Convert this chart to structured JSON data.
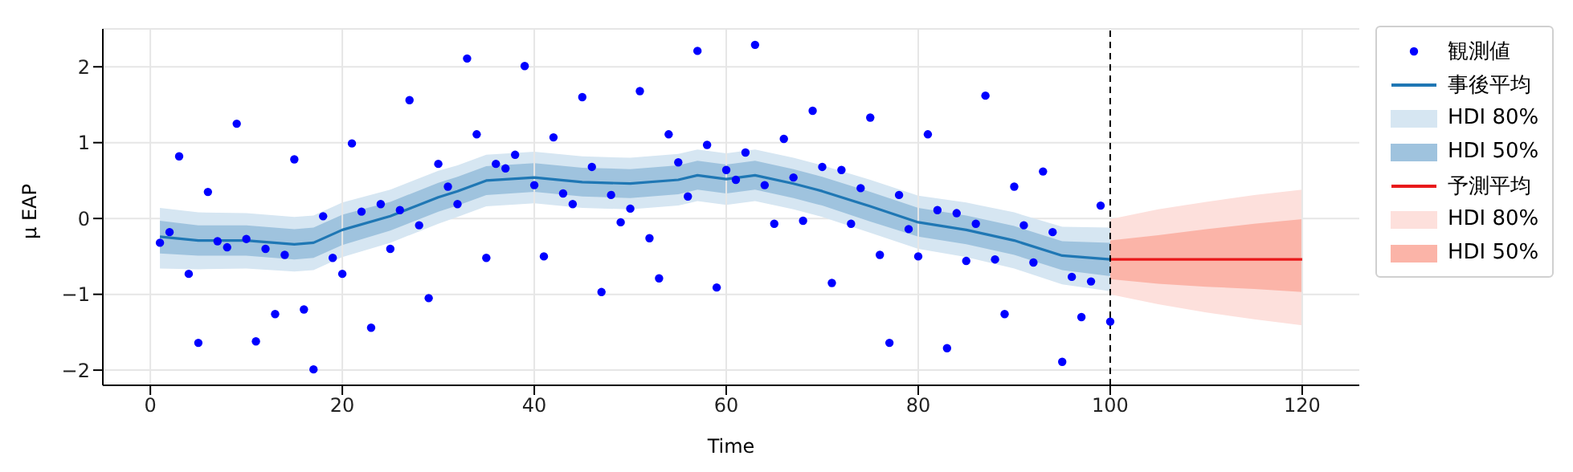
{
  "chart_data": {
    "type": "line",
    "xlabel": "Time",
    "ylabel": "μ EAP",
    "xlim": [
      -4.95,
      125.95
    ],
    "ylim": [
      -2.2,
      2.5
    ],
    "xticks": [
      0,
      20,
      40,
      60,
      80,
      100,
      120
    ],
    "yticks": [
      -2,
      -1,
      0,
      1,
      2
    ],
    "grid": true,
    "legend": "right",
    "ref_lines": [
      {
        "axis": "x",
        "value": 100,
        "color": "#000000",
        "line_style": "dashed"
      }
    ],
    "series": [
      {
        "type": "scatter",
        "name": "観測値",
        "color": "#0000ff",
        "marker": "circle",
        "x": [
          1,
          2,
          3,
          4,
          5,
          6,
          7,
          8,
          9,
          10,
          11,
          12,
          13,
          14,
          15,
          16,
          17,
          18,
          19,
          20,
          21,
          22,
          23,
          24,
          25,
          26,
          27,
          28,
          29,
          30,
          31,
          32,
          33,
          34,
          35,
          36,
          37,
          38,
          39,
          40,
          41,
          42,
          43,
          44,
          45,
          46,
          47,
          48,
          49,
          50,
          51,
          52,
          53,
          54,
          55,
          56,
          57,
          58,
          59,
          60,
          61,
          62,
          63,
          64,
          65,
          66,
          67,
          68,
          69,
          70,
          71,
          72,
          73,
          74,
          75,
          76,
          77,
          78,
          79,
          80,
          81,
          82,
          83,
          84,
          85,
          86,
          87,
          88,
          89,
          90,
          91,
          92,
          93,
          94,
          95,
          96,
          97,
          98,
          99,
          100
        ],
        "values": [
          -0.32,
          -0.18,
          0.82,
          -0.73,
          -1.64,
          0.35,
          -0.3,
          -0.38,
          1.25,
          -0.27,
          -1.62,
          -0.4,
          -1.26,
          -0.48,
          0.78,
          -1.2,
          -1.99,
          0.03,
          -0.52,
          -0.73,
          0.99,
          0.09,
          -1.44,
          0.19,
          -0.4,
          0.11,
          1.56,
          -0.09,
          -1.05,
          0.72,
          0.42,
          0.19,
          2.11,
          1.11,
          -0.52,
          0.72,
          0.66,
          0.84,
          2.01,
          0.44,
          -0.5,
          1.07,
          0.33,
          0.19,
          1.6,
          0.68,
          -0.97,
          0.31,
          -0.05,
          0.13,
          1.68,
          -0.26,
          -0.79,
          1.11,
          0.74,
          0.29,
          2.21,
          0.97,
          -0.91,
          0.64,
          0.51,
          0.87,
          2.29,
          0.44,
          -0.07,
          1.05,
          0.54,
          -0.03,
          1.42,
          0.68,
          -0.85,
          0.64,
          -0.07,
          0.4,
          1.33,
          -0.48,
          -1.64,
          0.31,
          -0.14,
          -0.5,
          1.11,
          0.11,
          -1.71,
          0.07,
          -0.56,
          -0.07,
          1.62,
          -0.54,
          -1.26,
          0.42,
          -0.09,
          -0.58,
          0.62,
          -0.18,
          -1.89,
          -0.77,
          -1.3,
          -0.83,
          0.17,
          -1.36
        ]
      },
      {
        "type": "line",
        "name": "事後平均",
        "color": "#1f77b4",
        "line_style": "solid",
        "x": [
          1,
          5,
          10,
          15,
          17,
          20,
          25,
          30,
          32,
          35,
          40,
          45,
          50,
          55,
          57,
          60,
          63,
          67,
          70,
          75,
          80,
          85,
          90,
          95,
          100
        ],
        "values": [
          -0.24,
          -0.29,
          -0.29,
          -0.34,
          -0.32,
          -0.15,
          0.03,
          0.28,
          0.36,
          0.5,
          0.54,
          0.48,
          0.46,
          0.51,
          0.57,
          0.52,
          0.57,
          0.46,
          0.36,
          0.16,
          -0.05,
          -0.15,
          -0.29,
          -0.49,
          -0.54
        ]
      },
      {
        "name": "HDI 80%",
        "color": "#d6e6f2",
        "x": [
          1,
          5,
          10,
          15,
          17,
          20,
          25,
          30,
          32,
          35,
          40,
          45,
          50,
          55,
          57,
          60,
          63,
          67,
          70,
          75,
          80,
          85,
          90,
          95,
          100
        ],
        "values": [
          null,
          null,
          null,
          null,
          null,
          null,
          null,
          null,
          null,
          null,
          null,
          null,
          null,
          null,
          null,
          null,
          null,
          null,
          null,
          null,
          null,
          null,
          null,
          null,
          null
        ],
        "lower": [
          -0.66,
          -0.67,
          -0.66,
          -0.7,
          -0.68,
          -0.51,
          -0.32,
          -0.07,
          0.02,
          0.16,
          0.2,
          0.14,
          0.12,
          0.17,
          0.23,
          0.18,
          0.23,
          0.12,
          0.02,
          -0.19,
          -0.4,
          -0.51,
          -0.66,
          -0.87,
          -0.96
        ],
        "upper": [
          0.14,
          0.08,
          0.07,
          0.02,
          0.04,
          0.21,
          0.38,
          0.63,
          0.7,
          0.84,
          0.88,
          0.82,
          0.8,
          0.85,
          0.91,
          0.86,
          0.91,
          0.8,
          0.7,
          0.51,
          0.3,
          0.21,
          0.08,
          -0.11,
          -0.12
        ]
      },
      {
        "name": "HDI 50%",
        "color": "#9fc3de",
        "x": [
          1,
          5,
          10,
          15,
          17,
          20,
          25,
          30,
          32,
          35,
          40,
          45,
          50,
          55,
          57,
          60,
          63,
          67,
          70,
          75,
          80,
          85,
          90,
          95,
          100
        ],
        "values": [
          null,
          null,
          null,
          null,
          null,
          null,
          null,
          null,
          null,
          null,
          null,
          null,
          null,
          null,
          null,
          null,
          null,
          null,
          null,
          null,
          null,
          null,
          null,
          null,
          null
        ],
        "lower": [
          -0.46,
          -0.49,
          -0.49,
          -0.54,
          -0.52,
          -0.35,
          -0.16,
          0.09,
          0.17,
          0.31,
          0.35,
          0.29,
          0.27,
          0.32,
          0.38,
          0.33,
          0.38,
          0.27,
          0.17,
          -0.04,
          -0.24,
          -0.34,
          -0.48,
          -0.68,
          -0.76
        ],
        "upper": [
          -0.03,
          -0.09,
          -0.09,
          -0.14,
          -0.12,
          0.05,
          0.22,
          0.47,
          0.55,
          0.69,
          0.73,
          0.67,
          0.65,
          0.7,
          0.76,
          0.71,
          0.76,
          0.65,
          0.55,
          0.35,
          0.14,
          0.04,
          -0.1,
          -0.3,
          -0.32
        ]
      },
      {
        "type": "line",
        "name": "予測平均",
        "color": "#e8191a",
        "line_style": "solid",
        "x": [
          100,
          105,
          110,
          115,
          120
        ],
        "values": [
          -0.54,
          -0.54,
          -0.54,
          -0.54,
          -0.54
        ]
      },
      {
        "name": "HDI 80%",
        "color": "#fde0dc",
        "x": [
          100,
          105,
          110,
          115,
          120
        ],
        "values": [
          null,
          null,
          null,
          null,
          null
        ],
        "lower": [
          -1.0,
          -1.13,
          -1.24,
          -1.33,
          -1.41
        ],
        "upper": [
          -0.01,
          0.12,
          0.22,
          0.31,
          0.38
        ]
      },
      {
        "name": "HDI 50%",
        "color": "#fbb4a8",
        "x": [
          100,
          105,
          110,
          115,
          120
        ],
        "values": [
          null,
          null,
          null,
          null,
          null
        ],
        "lower": [
          -0.8,
          -0.86,
          -0.9,
          -0.93,
          -0.97
        ],
        "upper": [
          -0.29,
          -0.22,
          -0.14,
          -0.07,
          -0.01
        ]
      }
    ]
  }
}
